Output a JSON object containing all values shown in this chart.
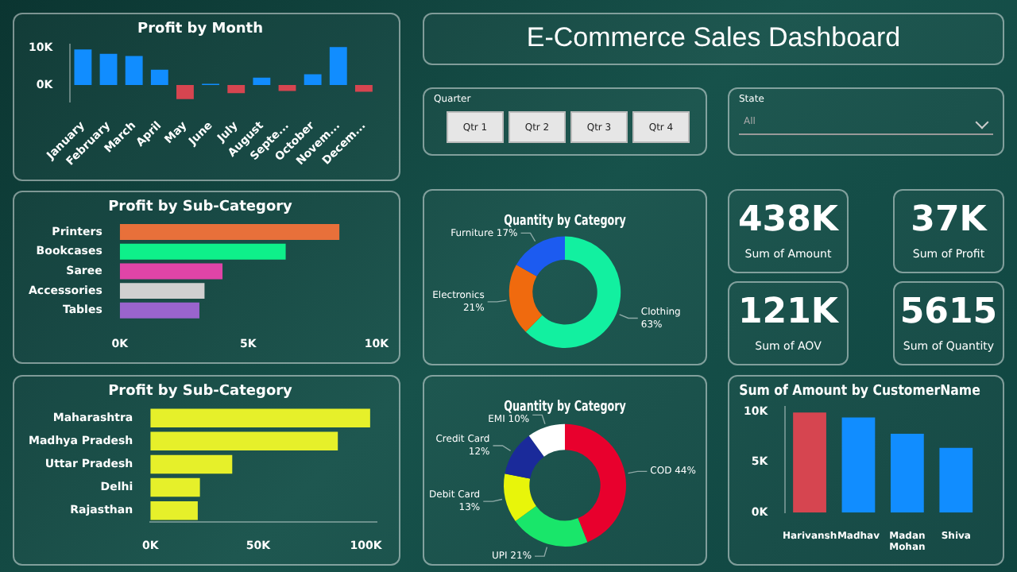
{
  "chart_data": [
    {
      "type": "bar",
      "title": "Profit by Month",
      "categories": [
        "January",
        "February",
        "March",
        "April",
        "May",
        "June",
        "July",
        "August",
        "Septe...",
        "October",
        "Novem...",
        "Decem..."
      ],
      "values": [
        9600,
        8400,
        7800,
        4100,
        -3800,
        300,
        -2200,
        2000,
        -1600,
        2900,
        10200,
        -1800
      ],
      "colors": [
        "#118dff",
        "#118dff",
        "#118dff",
        "#118dff",
        "#d64550",
        "#118dff",
        "#d64550",
        "#118dff",
        "#d64550",
        "#118dff",
        "#118dff",
        "#d64550"
      ],
      "ylim": [
        -4500,
        11000
      ],
      "yticks": [
        {
          "value": 0,
          "label": "0K"
        },
        {
          "value": 10000,
          "label": "10K"
        }
      ]
    },
    {
      "type": "other",
      "title": "E-Commerce Sales Dashboard",
      "annotations": [
        "Quarter",
        "Qtr 1",
        "Qtr 2",
        "Qtr 3",
        "Qtr 4",
        "State",
        "All"
      ]
    },
    {
      "type": "bar",
      "orientation": "horizontal",
      "title": "Profit by Sub-Category",
      "categories": [
        "Printers",
        "Bookcases",
        "Saree",
        "Accessories",
        "Tables"
      ],
      "values": [
        8550,
        6460,
        4000,
        3300,
        3100
      ],
      "colors": [
        "#e8703a",
        "#0ef08a",
        "#e044a7",
        "#d0d0d0",
        "#9a64cd"
      ],
      "xlim": [
        0,
        10000
      ],
      "xticks": [
        {
          "value": 0,
          "label": "0K"
        },
        {
          "value": 5000,
          "label": "5K"
        },
        {
          "value": 10000,
          "label": "10K"
        }
      ]
    },
    {
      "type": "donut",
      "title": "Quantity by Category",
      "categories": [
        "Clothing",
        "Electronics",
        "Furniture"
      ],
      "values": [
        63,
        21,
        17
      ],
      "value_labels": [
        "63%",
        "21%",
        "17%"
      ],
      "colors": [
        "#12f0a0",
        "#f06a0e",
        "#1c5bf0"
      ]
    },
    {
      "type": "other",
      "annotations": [
        "438K",
        "Sum of Amount",
        "37K",
        "Sum of Profit",
        "121K",
        "Sum of AOV",
        "5615",
        "Sum of Quantity"
      ]
    },
    {
      "type": "bar",
      "orientation": "horizontal",
      "title": "Profit by Sub-Category",
      "categories": [
        "Maharashtra",
        "Madhya Pradesh",
        "Uttar Pradesh",
        "Delhi",
        "Rajasthan"
      ],
      "values": [
        102000,
        87000,
        38000,
        23000,
        22000
      ],
      "colors": [
        "#e6f02a",
        "#e6f02a",
        "#e6f02a",
        "#e6f02a",
        "#e6f02a"
      ],
      "xlim": [
        0,
        105000
      ],
      "xticks": [
        {
          "value": 0,
          "label": "0K"
        },
        {
          "value": 50000,
          "label": "50K"
        },
        {
          "value": 100000,
          "label": "100K"
        }
      ]
    },
    {
      "type": "donut",
      "title": "Quantity by Category",
      "categories": [
        "COD",
        "UPI",
        "Debit Card",
        "Credit Card",
        "EMI"
      ],
      "values": [
        44,
        21,
        13,
        12,
        10
      ],
      "value_labels": [
        "44%",
        "21%",
        "13%",
        "12%",
        "10%"
      ],
      "colors": [
        "#e8002d",
        "#19e66a",
        "#e8f50a",
        "#1a2a9a",
        "#ffffff"
      ]
    },
    {
      "type": "bar",
      "title": "Sum of Amount by CustomerName",
      "categories": [
        "Harivansh",
        "Madhav",
        "Madan Mohan",
        "Shiva"
      ],
      "values": [
        9900,
        9400,
        7800,
        6400
      ],
      "colors": [
        "#d64550",
        "#118dff",
        "#118dff",
        "#118dff"
      ],
      "ylim": [
        0,
        10500
      ],
      "yticks": [
        {
          "value": 0,
          "label": "0K"
        },
        {
          "value": 5000,
          "label": "5K"
        },
        {
          "value": 10000,
          "label": "10K"
        }
      ]
    }
  ]
}
